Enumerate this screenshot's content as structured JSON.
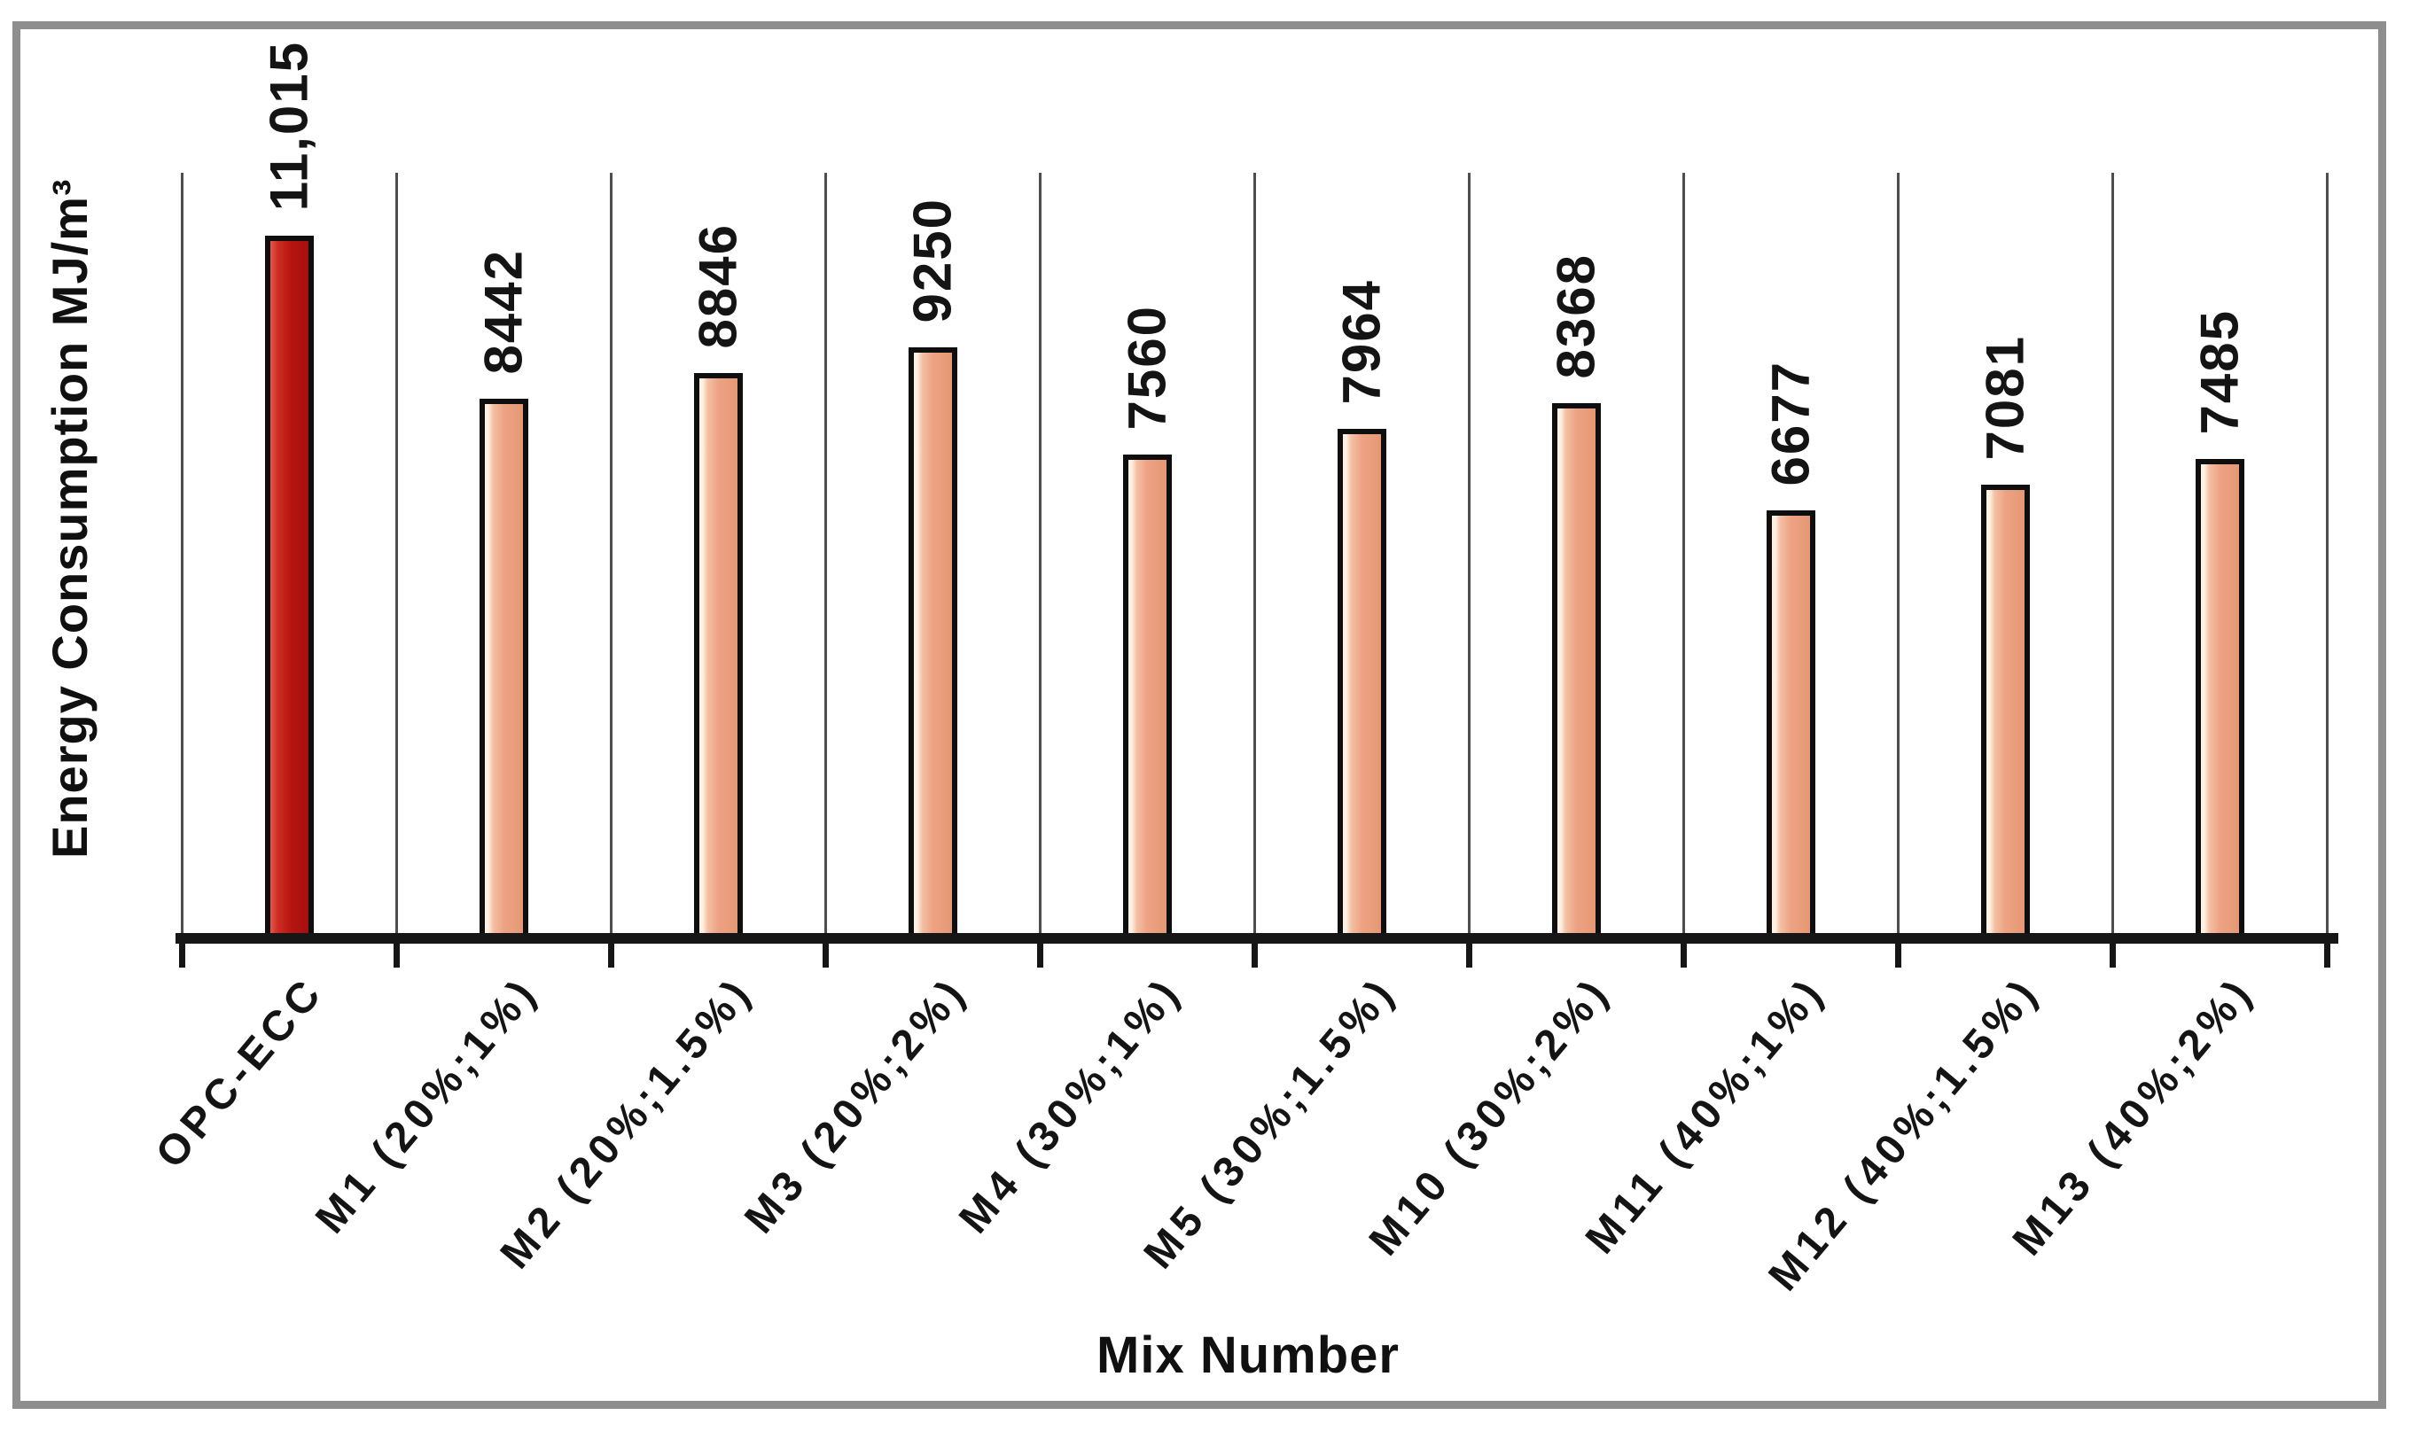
{
  "figure": {
    "background_color": "#ffffff",
    "border_color": "#8e8e8e",
    "gridline_color": "#4e4e4e",
    "axis_color": "#161616"
  },
  "chart_data": {
    "type": "bar",
    "title": "",
    "xlabel": "Mix Number",
    "ylabel": "Energy Consumption MJ/m³",
    "categories": [
      "OPC-ECC",
      "M1 (20%;1%)",
      "M2 (20%;1.5%)",
      "M3 (20%;2%)",
      "M4 (30%;1%)",
      "M5 (30%;1.5%)",
      "M10 (30%;2%)",
      "M11 (40%;1%)",
      "M12 (40%;1.5%)",
      "M13 (40%;2%)"
    ],
    "values": [
      11015,
      8442,
      8846,
      9250,
      7560,
      7964,
      8368,
      6677,
      7081,
      7485
    ],
    "data_labels": [
      "11,015",
      "8442",
      "8846",
      "9250",
      "7560",
      "7964",
      "8368",
      "6677",
      "7081",
      "7485"
    ],
    "ylim": [
      0,
      11015
    ],
    "yticks_visible": false,
    "grid": "vertical category boundary lines",
    "legend": "none",
    "highlight_index": 0,
    "bar_color_highlight": "#b61511",
    "bar_color_default": "#eda284",
    "bar_border_color": "#0e0e0e"
  }
}
